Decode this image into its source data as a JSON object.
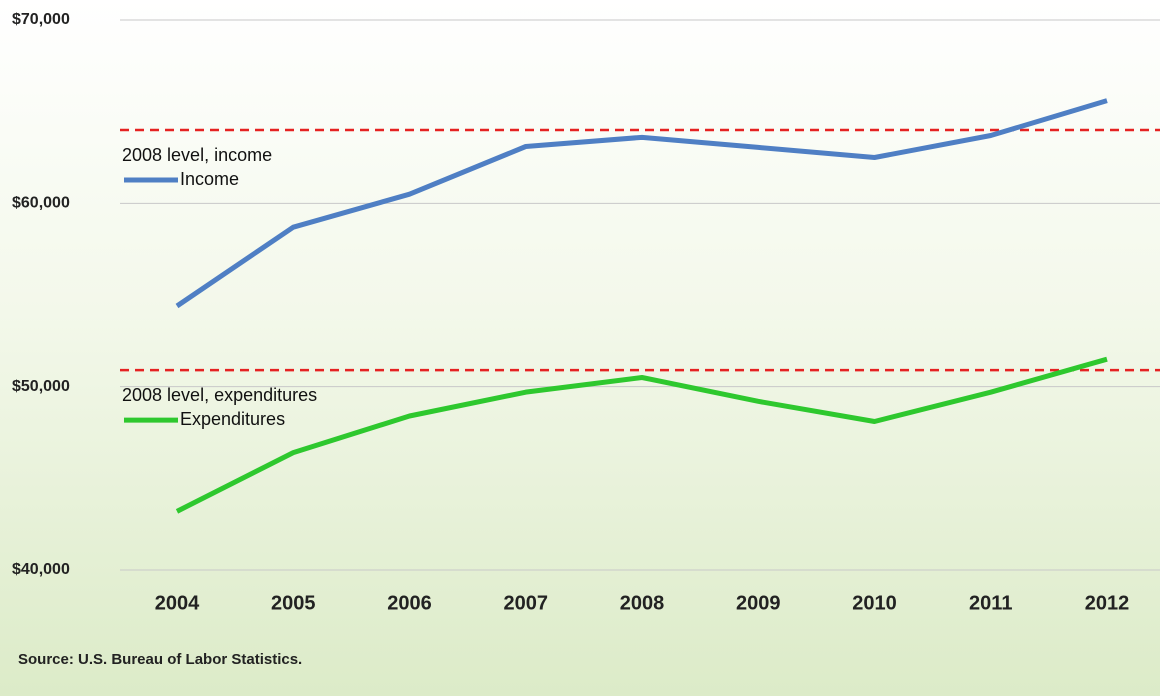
{
  "chart_data": {
    "type": "line",
    "categories": [
      "2004",
      "2005",
      "2006",
      "2007",
      "2008",
      "2009",
      "2010",
      "2011",
      "2012"
    ],
    "series": [
      {
        "name": "Income",
        "color": "#4f7fc4",
        "values": [
          54400,
          58700,
          60500,
          63100,
          63600,
          63050,
          62500,
          63700,
          65600
        ]
      },
      {
        "name": "Expenditures",
        "color": "#2ec82e",
        "values": [
          43200,
          46400,
          48400,
          49700,
          50500,
          49200,
          48100,
          49700,
          51500
        ]
      }
    ],
    "reference_lines": [
      {
        "label": "2008 level, income",
        "value": 64000,
        "color": "#e52222"
      },
      {
        "label": "2008 level, expenditures",
        "value": 50900,
        "color": "#e52222"
      }
    ],
    "ylim": [
      40000,
      70000
    ],
    "yticks": [
      {
        "value": 40000,
        "label": "$40,000"
      },
      {
        "value": 50000,
        "label": "$50,000"
      },
      {
        "value": 60000,
        "label": "$60,000"
      },
      {
        "value": 70000,
        "label": "$70,000"
      }
    ],
    "grid": true,
    "source": "Source: U.S. Bureau of Labor Statistics."
  }
}
